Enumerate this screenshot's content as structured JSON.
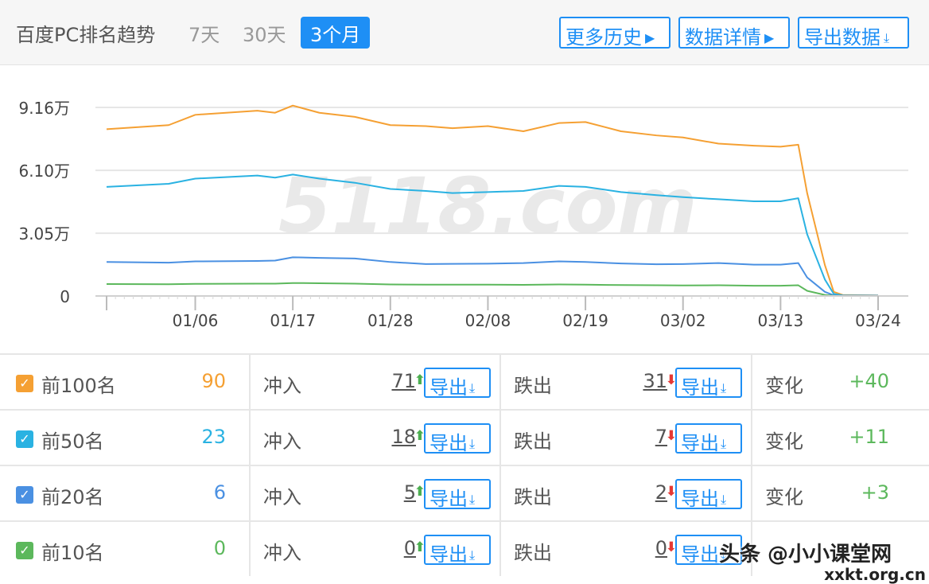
{
  "header": {
    "title": "百度PC排名趋势",
    "ranges": [
      "7天",
      "30天",
      "3个月"
    ],
    "active_range": "3个月",
    "buttons": {
      "history": "更多历史",
      "details": "数据详情",
      "export": "导出数据"
    }
  },
  "colors": {
    "accent": "#1e8ff5",
    "top100": "#f5a033",
    "top50": "#2ab2e2",
    "top20": "#4a90e2",
    "top10": "#5cb85c",
    "up": "#4caf50",
    "down": "#e53935"
  },
  "chart_data": {
    "type": "line",
    "watermark": "5118.com",
    "y_ticks": [
      "0",
      "3.05万",
      "6.10万",
      "9.16万"
    ],
    "ylim": [
      0,
      91600
    ],
    "x_ticks": [
      "01/06",
      "01/17",
      "01/28",
      "02/08",
      "02/19",
      "03/02",
      "03/13",
      "03/24"
    ],
    "x_range": [
      "12/27",
      "03/24"
    ],
    "grid": true,
    "series": [
      {
        "color": "#f5a033",
        "x": [
          "12/27",
          "01/03",
          "01/06",
          "01/13",
          "01/15",
          "01/17",
          "01/20",
          "01/24",
          "01/28",
          "02/01",
          "02/04",
          "02/08",
          "02/12",
          "02/16",
          "02/19",
          "02/23",
          "02/27",
          "03/02",
          "03/06",
          "03/10",
          "03/13",
          "03/15",
          "03/16",
          "03/18",
          "03/19",
          "03/20",
          "03/24"
        ],
        "values": [
          81000,
          83000,
          88000,
          90000,
          89000,
          92500,
          89000,
          87000,
          83000,
          82500,
          81500,
          82500,
          80000,
          84000,
          84500,
          80000,
          78000,
          77000,
          74000,
          73000,
          72500,
          73500,
          50000,
          15000,
          2000,
          500,
          300
        ]
      },
      {
        "color": "#2ab2e2",
        "x": [
          "12/27",
          "01/03",
          "01/06",
          "01/13",
          "01/15",
          "01/17",
          "01/20",
          "01/24",
          "01/28",
          "02/01",
          "02/04",
          "02/08",
          "02/12",
          "02/16",
          "02/19",
          "02/23",
          "02/27",
          "03/02",
          "03/06",
          "03/10",
          "03/13",
          "03/15",
          "03/16",
          "03/18",
          "03/19",
          "03/20",
          "03/24"
        ],
        "values": [
          53000,
          54500,
          57000,
          58500,
          57500,
          59000,
          57000,
          55000,
          52000,
          51000,
          50000,
          50500,
          51000,
          53500,
          53000,
          50500,
          49000,
          48000,
          47000,
          46000,
          46000,
          47500,
          30000,
          8000,
          1000,
          300,
          200
        ]
      },
      {
        "color": "#4a90e2",
        "x": [
          "12/27",
          "01/03",
          "01/06",
          "01/13",
          "01/15",
          "01/17",
          "01/20",
          "01/24",
          "01/28",
          "02/01",
          "02/04",
          "02/08",
          "02/12",
          "02/16",
          "02/19",
          "02/23",
          "02/27",
          "03/02",
          "03/06",
          "03/10",
          "03/13",
          "03/15",
          "03/16",
          "03/18",
          "03/19",
          "03/20",
          "03/24"
        ],
        "values": [
          16500,
          16200,
          16800,
          17000,
          17200,
          18800,
          18500,
          18200,
          16500,
          15500,
          15600,
          15700,
          16000,
          16800,
          16500,
          15800,
          15400,
          15500,
          16000,
          15200,
          15200,
          16000,
          9000,
          2000,
          300,
          100,
          100
        ]
      },
      {
        "color": "#5cb85c",
        "x": [
          "12/27",
          "01/03",
          "01/06",
          "01/13",
          "01/15",
          "01/17",
          "01/20",
          "01/24",
          "01/28",
          "02/01",
          "02/04",
          "02/08",
          "02/12",
          "02/16",
          "02/19",
          "02/23",
          "02/27",
          "03/02",
          "03/06",
          "03/10",
          "03/13",
          "03/15",
          "03/16",
          "03/18",
          "03/19",
          "03/20",
          "03/24"
        ],
        "values": [
          5800,
          5700,
          5900,
          6000,
          6000,
          6300,
          6200,
          6000,
          5600,
          5500,
          5500,
          5500,
          5400,
          5600,
          5500,
          5300,
          5200,
          5100,
          5200,
          5000,
          5000,
          5200,
          2500,
          500,
          100,
          0,
          0
        ]
      }
    ]
  },
  "rows": [
    {
      "label": "前100名",
      "count": "90",
      "color": "#f5a033",
      "in_label": "冲入",
      "in_value": "71",
      "out_label": "跌出",
      "out_value": "31",
      "export": "导出",
      "change_label": "变化",
      "change_value": "+40"
    },
    {
      "label": "前50名",
      "count": "23",
      "color": "#2ab2e2",
      "in_label": "冲入",
      "in_value": "18",
      "out_label": "跌出",
      "out_value": "7",
      "export": "导出",
      "change_label": "变化",
      "change_value": "+11"
    },
    {
      "label": "前20名",
      "count": "6",
      "color": "#4a90e2",
      "in_label": "冲入",
      "in_value": "5",
      "out_label": "跌出",
      "out_value": "2",
      "export": "导出",
      "change_label": "变化",
      "change_value": "+3"
    },
    {
      "label": "前10名",
      "count": "0",
      "color": "#5cb85c",
      "in_label": "冲入",
      "in_value": "0",
      "out_label": "跌出",
      "out_value": "0",
      "export": "导出",
      "change_label": "",
      "change_value": ""
    }
  ],
  "watermark_overlay": {
    "line1": "头条 @小小课堂网",
    "line2": "xxkt.org.cn"
  }
}
